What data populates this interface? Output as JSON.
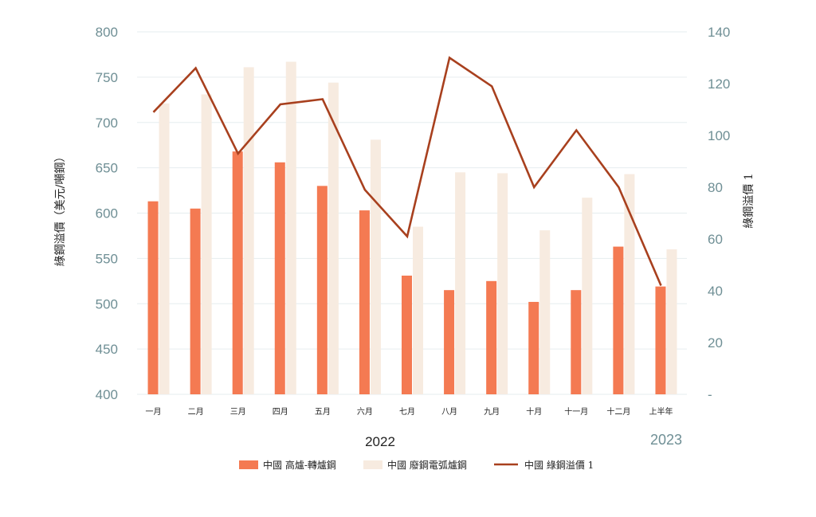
{
  "chart_data": {
    "type": "bar",
    "categories": [
      "一月",
      "二月",
      "三月",
      "四月",
      "五月",
      "六月",
      "七月",
      "八月",
      "九月",
      "十月",
      "十一月",
      "十二月",
      "上半年"
    ],
    "group_labels": [
      "2022",
      "2023"
    ],
    "ylabel": "綠鋼溢價（美元/噸鋼）",
    "ylabel_right": "綠鋼溢價 1",
    "ylim": [
      400,
      800
    ],
    "ylim_right": [
      0,
      140
    ],
    "yticks": [
      "400",
      "450",
      "500",
      "550",
      "600",
      "650",
      "700",
      "750",
      "800"
    ],
    "yticks_right": [
      "-",
      "20",
      "40",
      "60",
      "80",
      "100",
      "120",
      "140"
    ],
    "grid": true,
    "legend_position": "bottom",
    "series": [
      {
        "name": "中國 高爐-轉爐鋼",
        "type": "bar",
        "axis": "left",
        "color": "#f47a52",
        "values": [
          613,
          605,
          668,
          656,
          630,
          603,
          531,
          515,
          525,
          502,
          515,
          563,
          519
        ]
      },
      {
        "name": "中國 廢鋼電弧爐鋼",
        "type": "bar",
        "axis": "left",
        "color": "#f7ebe0",
        "values": [
          721,
          731,
          761,
          767,
          744,
          681,
          585,
          645,
          644,
          581,
          617,
          643,
          560
        ]
      },
      {
        "name": "中國 綠鋼溢價 1",
        "type": "line",
        "axis": "right",
        "color": "#a8401e",
        "values": [
          109,
          126,
          93,
          112,
          114,
          79,
          61,
          130,
          119,
          80,
          102,
          80,
          42
        ]
      }
    ]
  }
}
